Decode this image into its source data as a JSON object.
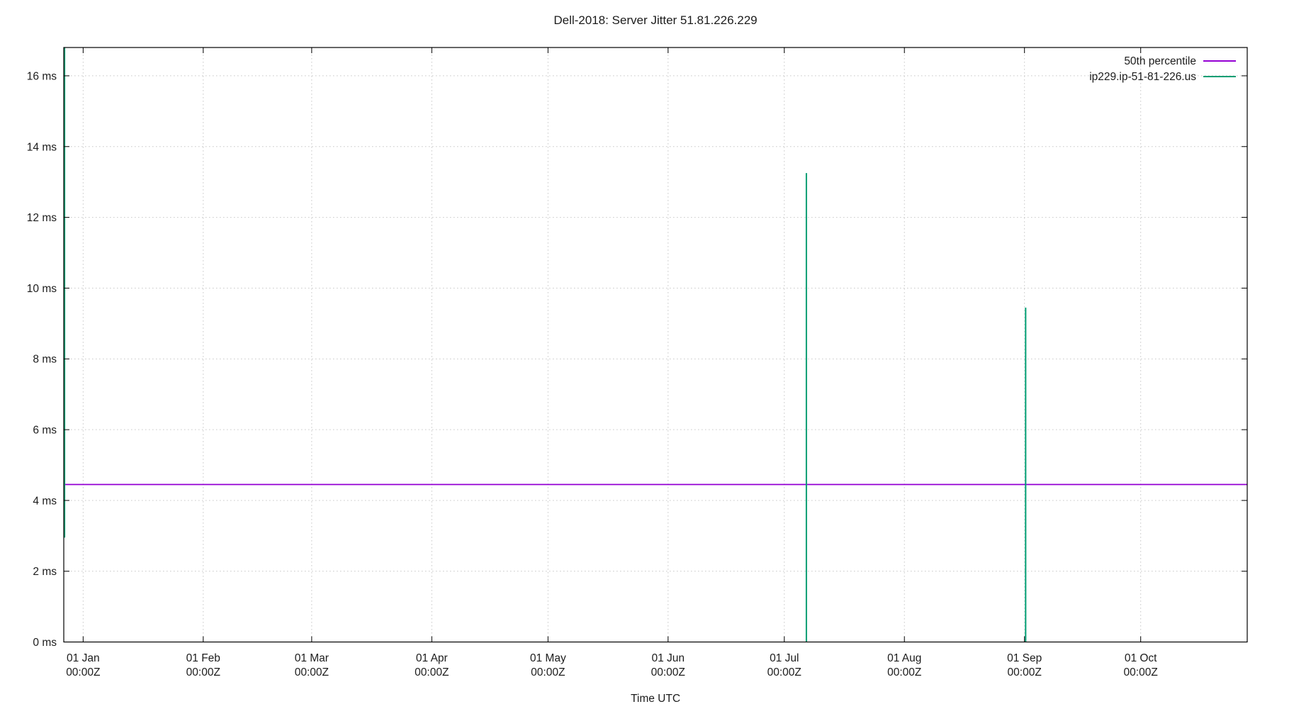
{
  "window": {
    "background": "#ffffff"
  },
  "chart_data": {
    "type": "line",
    "title": "Dell-2018: Server Jitter 51.81.226.229",
    "xlabel": "Time UTC",
    "ylabel": "",
    "grid": {
      "on": true,
      "style": "dotted",
      "color": "#c6c6c6"
    },
    "legend": {
      "position": "top-right-inside"
    },
    "x_axis": {
      "unit": "days since 01 Jan",
      "range_days": [
        -5,
        300.5
      ],
      "ticks": [
        {
          "day": 0,
          "label": "01 Jan",
          "sublabel": "00:00Z"
        },
        {
          "day": 31,
          "label": "01 Feb",
          "sublabel": "00:00Z"
        },
        {
          "day": 59,
          "label": "01 Mar",
          "sublabel": "00:00Z"
        },
        {
          "day": 90,
          "label": "01 Apr",
          "sublabel": "00:00Z"
        },
        {
          "day": 120,
          "label": "01 May",
          "sublabel": "00:00Z"
        },
        {
          "day": 151,
          "label": "01 Jun",
          "sublabel": "00:00Z"
        },
        {
          "day": 181,
          "label": "01 Jul",
          "sublabel": "00:00Z"
        },
        {
          "day": 212,
          "label": "01 Aug",
          "sublabel": "00:00Z"
        },
        {
          "day": 243,
          "label": "01 Sep",
          "sublabel": "00:00Z"
        },
        {
          "day": 273,
          "label": "01 Oct",
          "sublabel": "00:00Z"
        }
      ]
    },
    "y_axis": {
      "range_ms": [
        0,
        16.8
      ],
      "ticks": [
        {
          "ms": 0,
          "label": "0 ms"
        },
        {
          "ms": 2,
          "label": "2 ms"
        },
        {
          "ms": 4,
          "label": "4 ms"
        },
        {
          "ms": 6,
          "label": "6 ms"
        },
        {
          "ms": 8,
          "label": "8 ms"
        },
        {
          "ms": 10,
          "label": "10 ms"
        },
        {
          "ms": 12,
          "label": "12 ms"
        },
        {
          "ms": 14,
          "label": "14 ms"
        },
        {
          "ms": 16,
          "label": "16 ms"
        }
      ]
    },
    "series": [
      {
        "name": "50th percentile",
        "color": "#9400D3",
        "style": "hline",
        "value_ms": 4.45
      },
      {
        "name": "ip229.ip-51-81-226.us",
        "color": "#009E73",
        "style": "impulses",
        "spikes": [
          {
            "day": -4.8,
            "from_ms": 2.95,
            "to_ms": 16.8,
            "clipped_top": true
          },
          {
            "day": 186.7,
            "from_ms": 0,
            "to_ms": 13.25,
            "clipped_top": false
          },
          {
            "day": 243.3,
            "from_ms": 0,
            "to_ms": 9.45,
            "clipped_top": false
          }
        ]
      }
    ]
  }
}
